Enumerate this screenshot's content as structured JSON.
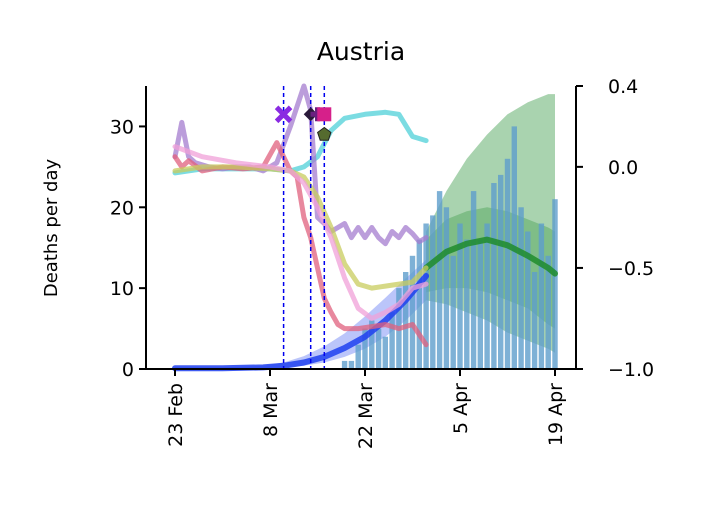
{
  "chart_data": {
    "type": "line",
    "title": "Austria",
    "ylabel": "Deaths per day",
    "ylim": [
      0,
      35
    ],
    "yticks": [
      0,
      10,
      20,
      30
    ],
    "y2lim": [
      -1.0,
      0.4
    ],
    "y2ticks": [
      -1.0,
      -0.5,
      0.0,
      0.4
    ],
    "y2ticklabels": [
      "−1.0",
      "−0.5",
      "0.0",
      "0.4"
    ],
    "x_start": "2020-02-23",
    "x_end": "2020-04-19",
    "xticks": [
      "2020-02-23",
      "2020-03-08",
      "2020-03-22",
      "2020-04-05",
      "2020-04-19"
    ],
    "xticklabels": [
      "23 Feb",
      "8 Mar",
      "22 Mar",
      "5 Apr",
      "19 Apr"
    ],
    "vlines": [
      "2020-03-10",
      "2020-03-14",
      "2020-03-16"
    ],
    "bars": {
      "dates": [
        "2020-03-19",
        "2020-03-20",
        "2020-03-21",
        "2020-03-22",
        "2020-03-23",
        "2020-03-24",
        "2020-03-25",
        "2020-03-26",
        "2020-03-27",
        "2020-03-28",
        "2020-03-29",
        "2020-03-30",
        "2020-03-31",
        "2020-04-01",
        "2020-04-02",
        "2020-04-03",
        "2020-04-04",
        "2020-04-05",
        "2020-04-06",
        "2020-04-07",
        "2020-04-08",
        "2020-04-09",
        "2020-04-10",
        "2020-04-11",
        "2020-04-12",
        "2020-04-13",
        "2020-04-14",
        "2020-04-15",
        "2020-04-16",
        "2020-04-17",
        "2020-04-18",
        "2020-04-19"
      ],
      "values": [
        1,
        1,
        3,
        5,
        6,
        5,
        4,
        7,
        10,
        12,
        14,
        16,
        18,
        19,
        22,
        20,
        14,
        18,
        16,
        22,
        16,
        18,
        23,
        24,
        26,
        30,
        20,
        17,
        12,
        18,
        14,
        21
      ],
      "color": "#5e9dcc"
    },
    "series": [
      {
        "role": "reported-deaths-fit",
        "axis": "left",
        "color": "#1f3ff0",
        "dates": [
          "2020-02-23",
          "2020-03-01",
          "2020-03-07",
          "2020-03-10",
          "2020-03-13",
          "2020-03-16",
          "2020-03-19",
          "2020-03-22",
          "2020-03-25",
          "2020-03-28",
          "2020-03-31"
        ],
        "values": [
          0.1,
          0.1,
          0.2,
          0.4,
          0.8,
          1.5,
          2.6,
          4.0,
          6.0,
          8.5,
          11.5
        ],
        "band_low": [
          0.05,
          0.05,
          0.1,
          0.2,
          0.4,
          0.8,
          1.5,
          2.5,
          4.0,
          6.0,
          8.5
        ],
        "band_high": [
          0.2,
          0.2,
          0.4,
          0.8,
          1.6,
          2.8,
          4.4,
          6.5,
          8.8,
          11.2,
          13.5
        ]
      },
      {
        "role": "forecast-deaths",
        "axis": "left",
        "color": "#1e8c2c",
        "dates": [
          "2020-03-31",
          "2020-04-03",
          "2020-04-06",
          "2020-04-09",
          "2020-04-12",
          "2020-04-15",
          "2020-04-18",
          "2020-04-19"
        ],
        "values": [
          12.5,
          14.5,
          15.5,
          16.0,
          15.3,
          14.0,
          12.5,
          11.8
        ],
        "band_low": [
          9.5,
          10.0,
          10.0,
          9.5,
          8.5,
          7.5,
          5.5,
          5.0
        ],
        "band_high": [
          16.0,
          18.5,
          19.5,
          20.0,
          19.5,
          18.5,
          17.5,
          17.0
        ],
        "outer_low": [
          8.5,
          8.0,
          7.0,
          6.0,
          4.5,
          3.5,
          2.5,
          2.0
        ],
        "outer_high": [
          17.0,
          22.0,
          26.0,
          29.0,
          31.5,
          33.0,
          34.0,
          34.0
        ]
      },
      {
        "role": "mobility-cyan",
        "axis": "right",
        "color": "#4fd0d8",
        "dates": [
          "2020-02-23",
          "2020-02-27",
          "2020-03-03",
          "2020-03-08",
          "2020-03-11",
          "2020-03-13",
          "2020-03-15",
          "2020-03-17",
          "2020-03-19",
          "2020-03-22",
          "2020-03-25",
          "2020-03-27",
          "2020-03-29",
          "2020-03-31"
        ],
        "values": [
          -0.03,
          -0.01,
          -0.01,
          -0.01,
          -0.02,
          0.0,
          0.05,
          0.18,
          0.24,
          0.26,
          0.27,
          0.26,
          0.15,
          0.13
        ]
      },
      {
        "role": "mobility-purple",
        "axis": "right",
        "color": "#a47ccf",
        "dates": [
          "2020-02-23",
          "2020-02-24",
          "2020-02-25",
          "2020-02-26",
          "2020-02-28",
          "2020-03-01",
          "2020-03-03",
          "2020-03-05",
          "2020-03-07",
          "2020-03-09",
          "2020-03-11",
          "2020-03-13",
          "2020-03-14",
          "2020-03-15",
          "2020-03-16",
          "2020-03-17",
          "2020-03-18",
          "2020-03-19",
          "2020-03-20",
          "2020-03-21",
          "2020-03-22",
          "2020-03-23",
          "2020-03-24",
          "2020-03-25",
          "2020-03-26",
          "2020-03-27",
          "2020-03-28",
          "2020-03-29",
          "2020-03-30",
          "2020-03-31"
        ],
        "values": [
          0.05,
          0.22,
          0.05,
          0.02,
          0.0,
          -0.01,
          0.0,
          0.0,
          -0.02,
          0.02,
          0.2,
          0.4,
          0.28,
          -0.25,
          -0.28,
          -0.32,
          -0.3,
          -0.28,
          -0.35,
          -0.3,
          -0.35,
          -0.3,
          -0.35,
          -0.38,
          -0.32,
          -0.35,
          -0.3,
          -0.33,
          -0.37,
          -0.35
        ]
      },
      {
        "role": "mobility-red",
        "axis": "right",
        "color": "#e0607e",
        "dates": [
          "2020-02-23",
          "2020-02-24",
          "2020-02-25",
          "2020-02-27",
          "2020-03-01",
          "2020-03-04",
          "2020-03-07",
          "2020-03-09",
          "2020-03-11",
          "2020-03-12",
          "2020-03-13",
          "2020-03-14",
          "2020-03-15",
          "2020-03-16",
          "2020-03-17",
          "2020-03-18",
          "2020-03-19",
          "2020-03-21",
          "2020-03-23",
          "2020-03-25",
          "2020-03-27",
          "2020-03-29",
          "2020-03-31"
        ],
        "values": [
          0.05,
          0.0,
          0.03,
          -0.02,
          0.0,
          -0.01,
          0.0,
          0.12,
          -0.02,
          -0.05,
          -0.25,
          -0.35,
          -0.5,
          -0.65,
          -0.72,
          -0.78,
          -0.8,
          -0.8,
          -0.79,
          -0.78,
          -0.8,
          -0.78,
          -0.88
        ]
      },
      {
        "role": "mobility-yellow",
        "axis": "right",
        "color": "#c8cc5e",
        "dates": [
          "2020-02-23",
          "2020-02-27",
          "2020-03-03",
          "2020-03-08",
          "2020-03-11",
          "2020-03-13",
          "2020-03-15",
          "2020-03-17",
          "2020-03-19",
          "2020-03-21",
          "2020-03-23",
          "2020-03-25",
          "2020-03-27",
          "2020-03-29",
          "2020-03-31"
        ],
        "values": [
          -0.02,
          0.0,
          0.0,
          -0.01,
          -0.02,
          -0.05,
          -0.15,
          -0.3,
          -0.48,
          -0.58,
          -0.6,
          -0.59,
          -0.58,
          -0.57,
          -0.5
        ]
      },
      {
        "role": "mobility-pink",
        "axis": "right",
        "color": "#f0a0d8",
        "dates": [
          "2020-02-23",
          "2020-02-27",
          "2020-03-03",
          "2020-03-08",
          "2020-03-11",
          "2020-03-13",
          "2020-03-15",
          "2020-03-17",
          "2020-03-19",
          "2020-03-21",
          "2020-03-23",
          "2020-03-25",
          "2020-03-27",
          "2020-03-29",
          "2020-03-31"
        ],
        "values": [
          0.1,
          0.05,
          0.02,
          0.0,
          -0.02,
          -0.08,
          -0.2,
          -0.35,
          -0.55,
          -0.7,
          -0.75,
          -0.72,
          -0.68,
          -0.6,
          -0.58
        ]
      }
    ],
    "markers": [
      {
        "date": "2020-03-10",
        "value": 0.26,
        "shape": "x",
        "color": "#8a2be2"
      },
      {
        "date": "2020-03-14",
        "value": 0.26,
        "shape": "diamond",
        "color": "#2a1a3a"
      },
      {
        "date": "2020-03-15",
        "value": 0.26,
        "shape": "plus",
        "color": "#6b2080"
      },
      {
        "date": "2020-03-16",
        "value": 0.26,
        "shape": "square",
        "color": "#d6208a"
      },
      {
        "date": "2020-03-16",
        "value": 0.16,
        "shape": "pentagon",
        "color": "#556b2f"
      }
    ]
  }
}
